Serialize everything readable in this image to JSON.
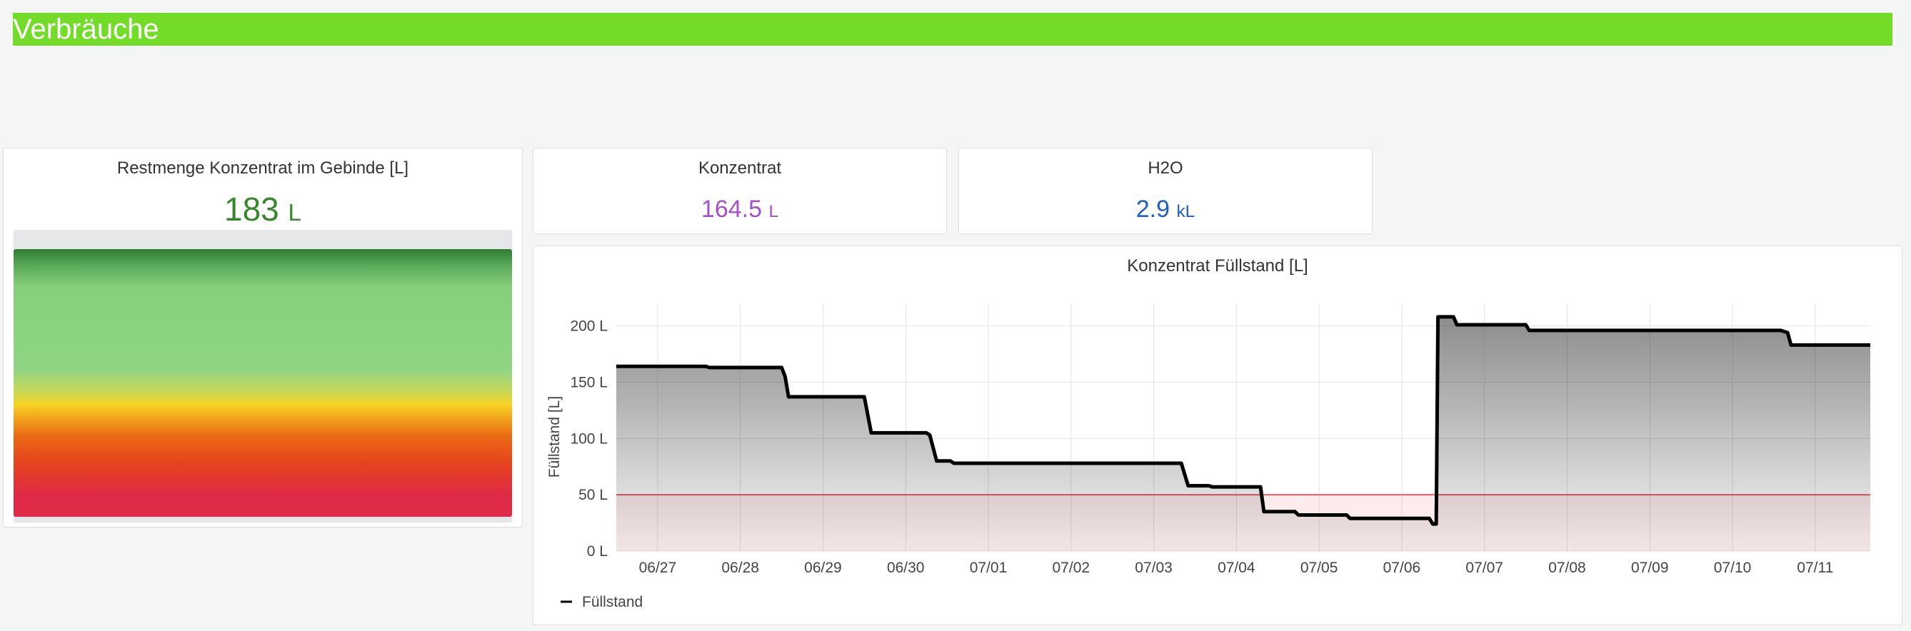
{
  "header": {
    "title": "Verbräuche"
  },
  "gauge_panel": {
    "title": "Restmenge Konzentrat im Gebinde [L]",
    "value": "183",
    "unit": "L",
    "fill_fraction": 0.915,
    "color": "#37872d"
  },
  "konzentrat_panel": {
    "title": "Konzentrat",
    "value": "164.5",
    "unit": "L",
    "color": "#a352cc"
  },
  "h2o_panel": {
    "title": "H2O",
    "value": "2.9",
    "unit": "kL",
    "color": "#1f60c4"
  },
  "chart_panel": {
    "title": "Konzentrat Füllstand [L]"
  },
  "chart_data": {
    "type": "line",
    "title": "Konzentrat Füllstand [L]",
    "ylabel": "Füllstand [L]",
    "xlabel": "",
    "ylim": [
      0,
      220
    ],
    "x_range": [
      "06/26 12:00",
      "07/11 16:00"
    ],
    "y_ticks": [
      "0 L",
      "50 L",
      "100 L",
      "150 L",
      "200 L"
    ],
    "y_tick_values": [
      0,
      50,
      100,
      150,
      200
    ],
    "x_ticks": [
      "06/27",
      "06/28",
      "06/29",
      "06/30",
      "07/01",
      "07/02",
      "07/03",
      "07/04",
      "07/05",
      "07/06",
      "07/07",
      "07/08",
      "07/09",
      "07/10",
      "07/11"
    ],
    "threshold": {
      "value": 50,
      "color": "#e02f44"
    },
    "legend": {
      "position": "bottom-left"
    },
    "grid": true,
    "series": [
      {
        "name": "Füllstand",
        "color": "#000000",
        "points": [
          [
            "06/26 12:00",
            164
          ],
          [
            "06/27 14:00",
            164
          ],
          [
            "06/27 15:00",
            163
          ],
          [
            "06/28 12:00",
            163
          ],
          [
            "06/28 13:00",
            155
          ],
          [
            "06/28 14:00",
            137
          ],
          [
            "06/29 12:00",
            137
          ],
          [
            "06/29 14:00",
            105
          ],
          [
            "06/30 06:00",
            105
          ],
          [
            "06/30 07:00",
            103
          ],
          [
            "06/30 09:00",
            80
          ],
          [
            "06/30 13:00",
            80
          ],
          [
            "06/30 14:00",
            78
          ],
          [
            "07/03 08:00",
            78
          ],
          [
            "07/03 10:00",
            58
          ],
          [
            "07/03 16:00",
            58
          ],
          [
            "07/03 17:00",
            57
          ],
          [
            "07/04 07:00",
            57
          ],
          [
            "07/04 08:00",
            35
          ],
          [
            "07/04 17:00",
            35
          ],
          [
            "07/04 18:00",
            32
          ],
          [
            "07/05 08:00",
            32
          ],
          [
            "07/05 09:00",
            29
          ],
          [
            "07/06 08:00",
            29
          ],
          [
            "07/06 09:00",
            24
          ],
          [
            "07/06 10:00",
            24
          ],
          [
            "07/06 10:30",
            208
          ],
          [
            "07/06 15:00",
            208
          ],
          [
            "07/06 16:00",
            201
          ],
          [
            "07/07 12:00",
            201
          ],
          [
            "07/07 13:00",
            196
          ],
          [
            "07/10 14:00",
            196
          ],
          [
            "07/10 16:00",
            194
          ],
          [
            "07/10 17:00",
            183
          ],
          [
            "07/11 16:00",
            183
          ]
        ]
      }
    ]
  }
}
